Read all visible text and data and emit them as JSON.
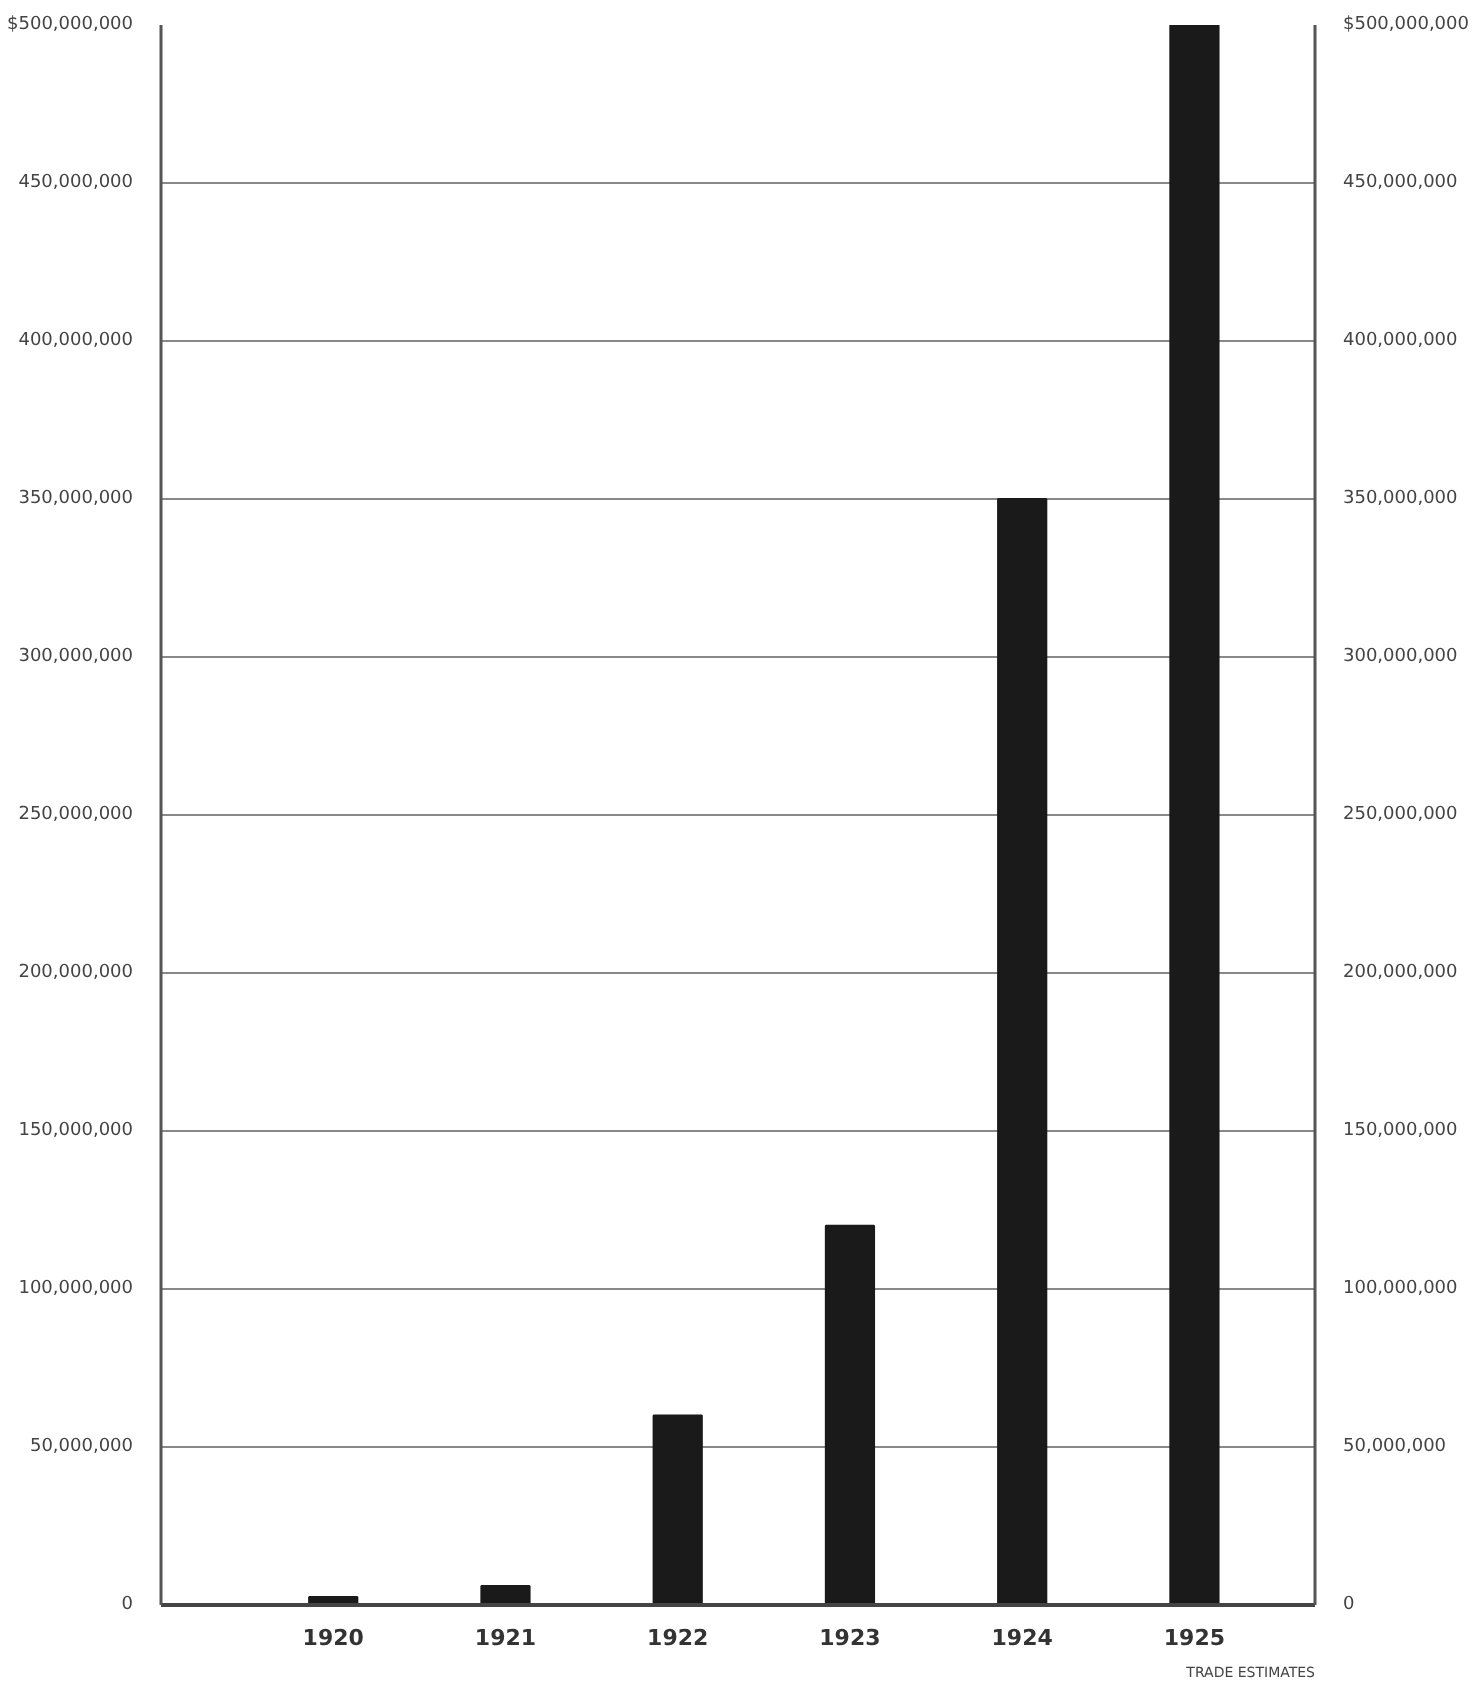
{
  "chart_data": {
    "type": "bar",
    "categories": [
      "1920",
      "1921",
      "1922",
      "1923",
      "1924",
      "1925"
    ],
    "values": [
      2500000,
      6000000,
      60000000,
      120000000,
      350000000,
      500000000
    ],
    "color": "#1a1a1a",
    "ylim": [
      0,
      500000000
    ],
    "yticks": [
      {
        "value": 0,
        "label": "0"
      },
      {
        "value": 50000000,
        "label": "50,000,000"
      },
      {
        "value": 100000000,
        "label": "100,000,000"
      },
      {
        "value": 150000000,
        "label": "150,000,000"
      },
      {
        "value": 200000000,
        "label": "200,000,000"
      },
      {
        "value": 250000000,
        "label": "250,000,000"
      },
      {
        "value": 300000000,
        "label": "300,000,000"
      },
      {
        "value": 350000000,
        "label": "350,000,000"
      },
      {
        "value": 400000000,
        "label": "400,000,000"
      },
      {
        "value": 450000000,
        "label": "450,000,000"
      },
      {
        "value": 500000000,
        "label": "$500,000,000"
      }
    ],
    "y2lim": [
      0,
      500000000
    ],
    "y2ticks": [
      {
        "value": 0,
        "label": "0"
      },
      {
        "value": 50000000,
        "label": "50,000,000"
      },
      {
        "value": 100000000,
        "label": "100,000,000"
      },
      {
        "value": 150000000,
        "label": "150,000,000"
      },
      {
        "value": 200000000,
        "label": "200,000,000"
      },
      {
        "value": 250000000,
        "label": "250,000,000"
      },
      {
        "value": 300000000,
        "label": "300,000,000"
      },
      {
        "value": 350000000,
        "label": "350,000,000"
      },
      {
        "value": 400000000,
        "label": "400,000,000"
      },
      {
        "value": 450000000,
        "label": "450,000,000"
      },
      {
        "value": 500000000,
        "label": "$500,000,000"
      }
    ],
    "grid": "y",
    "annotations": [
      "TRADE ESTIMATES"
    ]
  }
}
